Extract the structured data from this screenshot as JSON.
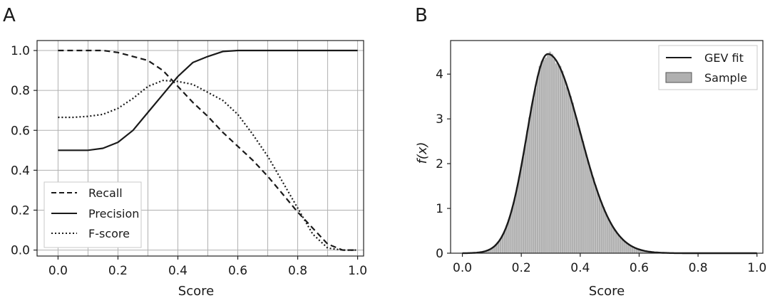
{
  "chart_data": [
    {
      "panel_label": "A",
      "type": "line",
      "xlabel": "Score",
      "ylabel": "",
      "xlim": [
        -0.07,
        1.02
      ],
      "ylim": [
        -0.03,
        1.05
      ],
      "xticks": [
        "0.0",
        "0.2",
        "0.4",
        "0.6",
        "0.8",
        "1.0"
      ],
      "yticks": [
        "0.0",
        "0.2",
        "0.4",
        "0.6",
        "0.8",
        "1.0"
      ],
      "grid": true,
      "legend_position": "lower-left",
      "x": [
        0.0,
        0.05,
        0.1,
        0.15,
        0.2,
        0.25,
        0.3,
        0.35,
        0.4,
        0.45,
        0.5,
        0.55,
        0.6,
        0.65,
        0.7,
        0.75,
        0.8,
        0.85,
        0.9,
        0.95,
        1.0
      ],
      "series": [
        {
          "name": "Recall",
          "style": "dashed",
          "values": [
            1.0,
            1.0,
            1.0,
            1.0,
            0.99,
            0.97,
            0.95,
            0.9,
            0.82,
            0.74,
            0.67,
            0.59,
            0.52,
            0.45,
            0.37,
            0.28,
            0.19,
            0.11,
            0.03,
            0.0,
            0.0
          ]
        },
        {
          "name": "Precision",
          "style": "solid",
          "values": [
            0.5,
            0.5,
            0.5,
            0.51,
            0.54,
            0.6,
            0.69,
            0.78,
            0.87,
            0.94,
            0.97,
            0.995,
            1.0,
            1.0,
            1.0,
            1.0,
            1.0,
            1.0,
            1.0,
            1.0,
            1.0
          ]
        },
        {
          "name": "F-score",
          "style": "dotted",
          "values": [
            0.665,
            0.665,
            0.67,
            0.68,
            0.71,
            0.76,
            0.82,
            0.85,
            0.845,
            0.83,
            0.79,
            0.75,
            0.68,
            0.58,
            0.47,
            0.34,
            0.21,
            0.08,
            0.01,
            0.0,
            0.0
          ]
        }
      ]
    },
    {
      "panel_label": "B",
      "type": "bar",
      "xlabel": "Score",
      "ylabel": "f(x)",
      "xlim": [
        -0.04,
        1.02
      ],
      "ylim": [
        0,
        4.75
      ],
      "xticks": [
        "0.0",
        "0.2",
        "0.4",
        "0.6",
        "0.8",
        "1.0"
      ],
      "yticks": [
        "0",
        "1",
        "2",
        "3",
        "4"
      ],
      "grid": false,
      "legend_position": "top-right",
      "legend": [
        {
          "name": "GEV fit",
          "style": "line"
        },
        {
          "name": "Sample",
          "style": "bar"
        }
      ],
      "gev_fit": {
        "name": "GEV fit",
        "mode": 0.29,
        "peak_density": 4.45,
        "left_scale": 0.07,
        "right_scale": 0.11
      },
      "histogram": {
        "name": "Sample",
        "bin_start": 0.0,
        "bin_end": 0.7,
        "bin_width": 0.007
      }
    }
  ],
  "colors": {
    "line": "#1a1a1a",
    "bar_fill": "#b0b0b0",
    "bar_edge": "#d8d8d8",
    "grid": "#b0b0b0"
  }
}
